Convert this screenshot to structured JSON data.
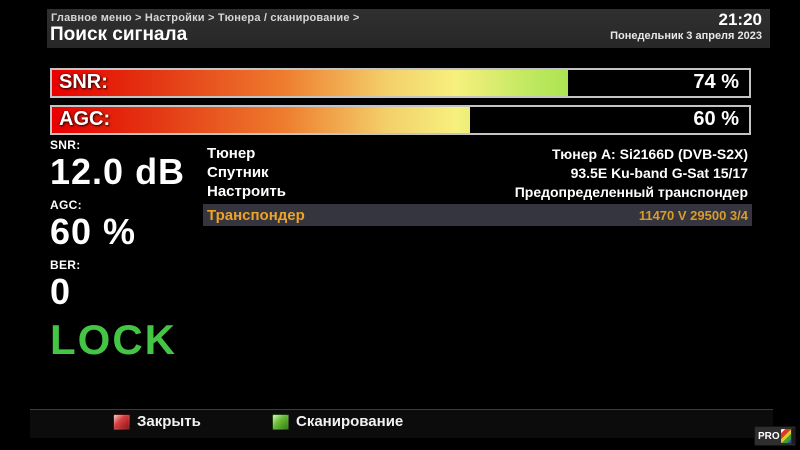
{
  "header": {
    "breadcrumb": "Главное меню > Настройки > Тюнера / сканирование >",
    "title": "Поиск сигнала",
    "time": "21:20",
    "date": "Понедельник  3 апреля 2023"
  },
  "meters": [
    {
      "id": "snr",
      "label": "SNR:",
      "value_text": "74 %",
      "fill_percent": 74
    },
    {
      "id": "agc",
      "label": "AGC:",
      "value_text": "60 %",
      "fill_percent": 60
    }
  ],
  "readouts": [
    {
      "label": "SNR:",
      "value": "12.0 dB"
    },
    {
      "label": "AGC:",
      "value": "60 %"
    },
    {
      "label": "BER:",
      "value": "0"
    }
  ],
  "lock_status": "LOCK",
  "info_rows": [
    {
      "label": "Тюнер",
      "value": "Тюнер A: Si2166D (DVB-S2X)"
    },
    {
      "label": "Спутник",
      "value": "93.5E Ku-band G-Sat 15/17"
    },
    {
      "label": "Настроить",
      "value": "Предопределенный транспондер"
    },
    {
      "label": "Транспондер",
      "value": "11470 V 29500 3/4"
    }
  ],
  "footer": {
    "close_label": "Закрыть",
    "scan_label": "Сканирование"
  },
  "logo_text": "PRO",
  "colors": {
    "lock_green": "#44c545",
    "selected_row_bg": "#35353f",
    "selected_row_text": "#eda327",
    "meter_border": "#c4c4c4",
    "gradient_start_red": "#e80000",
    "gradient_end_green": "#5ccc20",
    "key_red": "#cc2a2a",
    "key_green": "#55aa33",
    "topbar_bg": "#2b2b2b"
  }
}
